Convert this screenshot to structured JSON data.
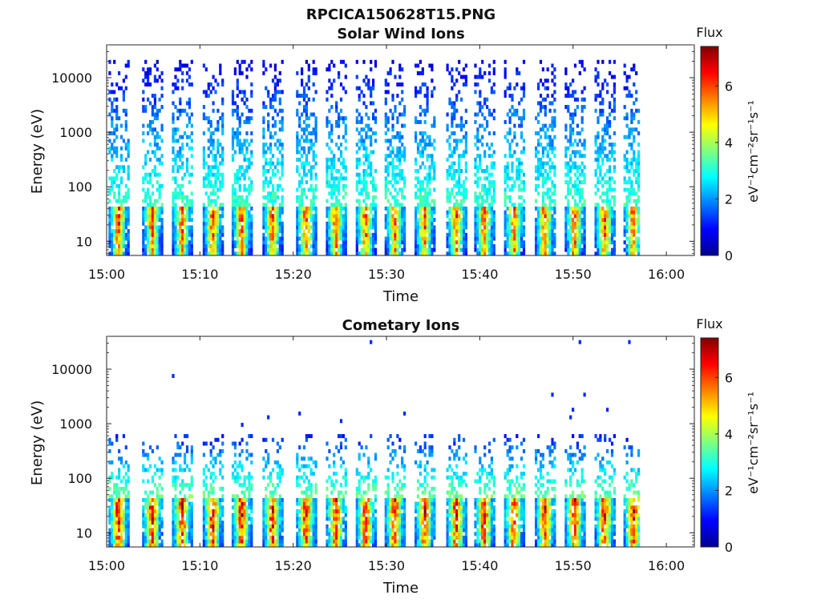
{
  "figure": {
    "title": "RPCICA150628T15.PNG"
  },
  "colorbar": {
    "label": "Flux",
    "ticks": [
      "0",
      "2",
      "4",
      "6"
    ],
    "range": [
      0,
      7.4
    ],
    "units": "eV⁻¹cm⁻²sr⁻¹s⁻¹",
    "colormap": "jet"
  },
  "chart_data": [
    {
      "type": "heatmap",
      "title": "Solar Wind Ions",
      "xlabel": "Time",
      "ylabel": "Energy (eV)",
      "xticks": [
        "15:00",
        "15:10",
        "15:20",
        "15:30",
        "15:40",
        "15:50",
        "16:00"
      ],
      "xlim_minutes": [
        0,
        63
      ],
      "yticks": [
        "10",
        "100",
        "1000",
        "10000"
      ],
      "ylim": [
        5.5,
        40000
      ],
      "yscale": "log",
      "data_end_minute": 57,
      "scan_start_minutes": [
        0.2,
        3.8,
        7.0,
        10.3,
        13.4,
        16.7,
        20.3,
        23.5,
        26.7,
        29.8,
        33.0,
        36.4,
        39.4,
        42.6,
        45.9,
        49.1,
        52.3,
        55.4
      ],
      "peak_energy_ev": 30,
      "peak_flux": 6.6,
      "high_energy_extent_ev": 20000
    },
    {
      "type": "heatmap",
      "title": "Cometary Ions",
      "xlabel": "Time",
      "ylabel": "Energy (eV)",
      "xticks": [
        "15:00",
        "15:10",
        "15:20",
        "15:30",
        "15:40",
        "15:50",
        "16:00"
      ],
      "xlim_minutes": [
        0,
        63
      ],
      "yticks": [
        "10",
        "100",
        "1000",
        "10000"
      ],
      "ylim": [
        5.5,
        40000
      ],
      "yscale": "log",
      "data_end_minute": 57,
      "scan_start_minutes": [
        0.2,
        3.8,
        7.0,
        10.3,
        13.4,
        16.7,
        20.3,
        23.5,
        26.7,
        29.8,
        33.0,
        36.4,
        39.4,
        42.6,
        45.9,
        49.1,
        52.3,
        55.4
      ],
      "peak_energy_ev": 25,
      "peak_flux": 7.2,
      "high_energy_extent_ev": 600
    }
  ]
}
